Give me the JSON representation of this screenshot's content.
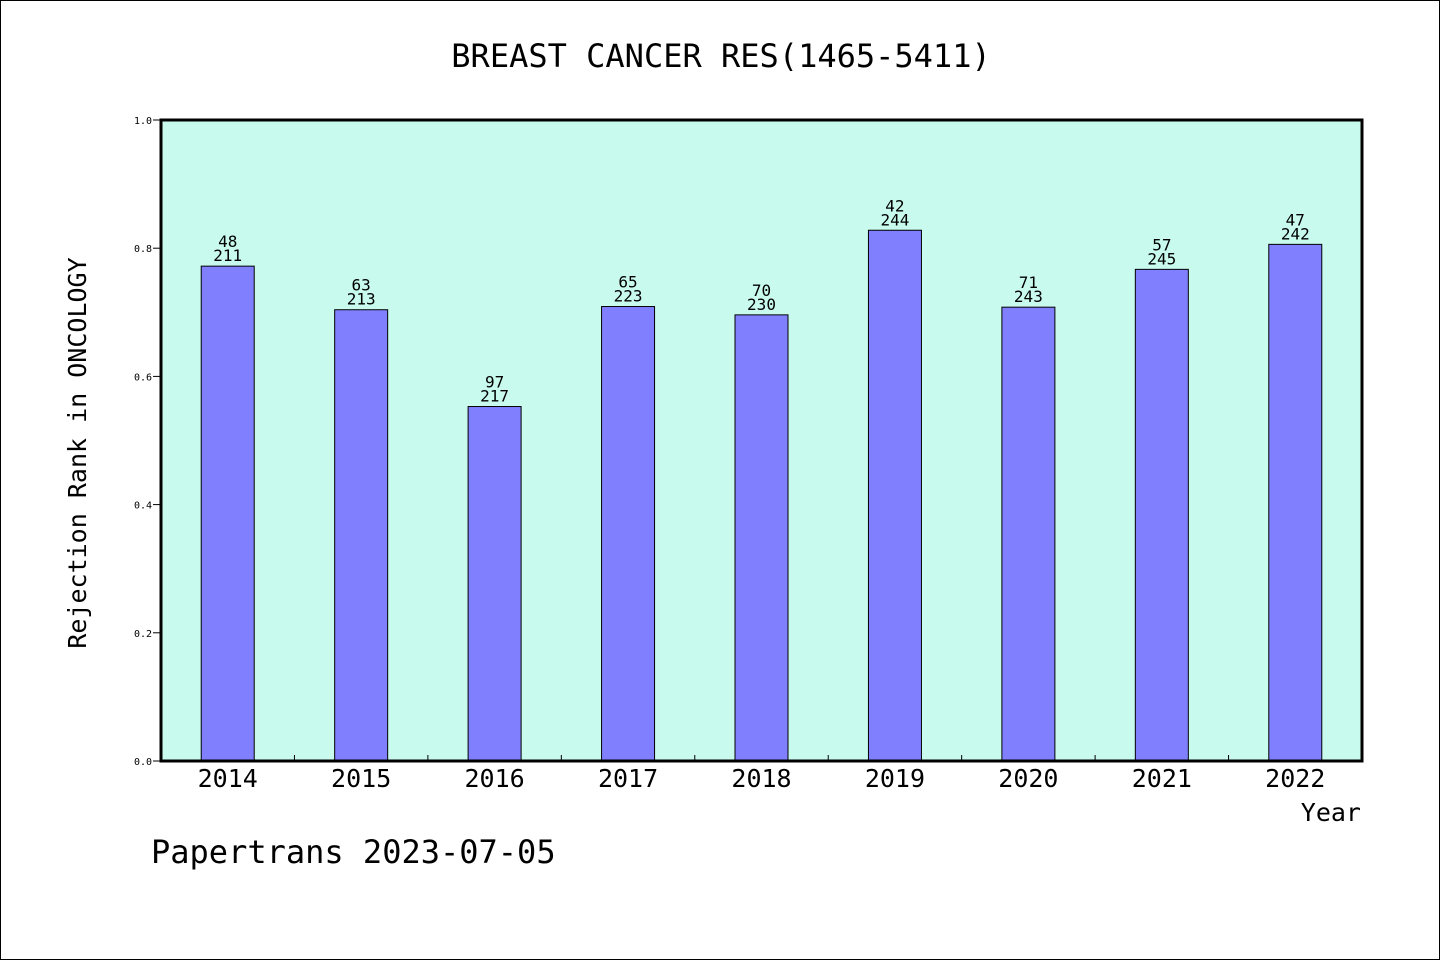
{
  "footer": {
    "note": "Papertrans 2023-07-05"
  },
  "colors": {
    "plot_background": "#c8fbee",
    "bar_fill": "#8080ff",
    "bar_stroke": "#000000",
    "axis": "#000000",
    "text": "#000000"
  },
  "chart_data": {
    "type": "bar",
    "title": "BREAST CANCER RES(1465-5411)",
    "xlabel": "Year",
    "ylabel": "Rejection Rank in ONCOLOGY",
    "ylim": [
      0,
      1.0
    ],
    "yticks": [
      0.0,
      0.2,
      0.4,
      0.6,
      0.8,
      1.0
    ],
    "ytick_labels": [
      "0.0",
      "0.2",
      "0.4",
      "0.6",
      "0.8",
      "1.0"
    ],
    "grid": false,
    "categories": [
      "2014",
      "2015",
      "2016",
      "2017",
      "2018",
      "2019",
      "2020",
      "2021",
      "2022"
    ],
    "values": [
      0.772,
      0.704,
      0.553,
      0.709,
      0.696,
      0.828,
      0.708,
      0.767,
      0.806
    ],
    "label_top": [
      "48",
      "63",
      "97",
      "65",
      "70",
      "42",
      "71",
      "57",
      "47"
    ],
    "label_bottom": [
      "211",
      "213",
      "217",
      "223",
      "230",
      "244",
      "243",
      "245",
      "242"
    ]
  }
}
